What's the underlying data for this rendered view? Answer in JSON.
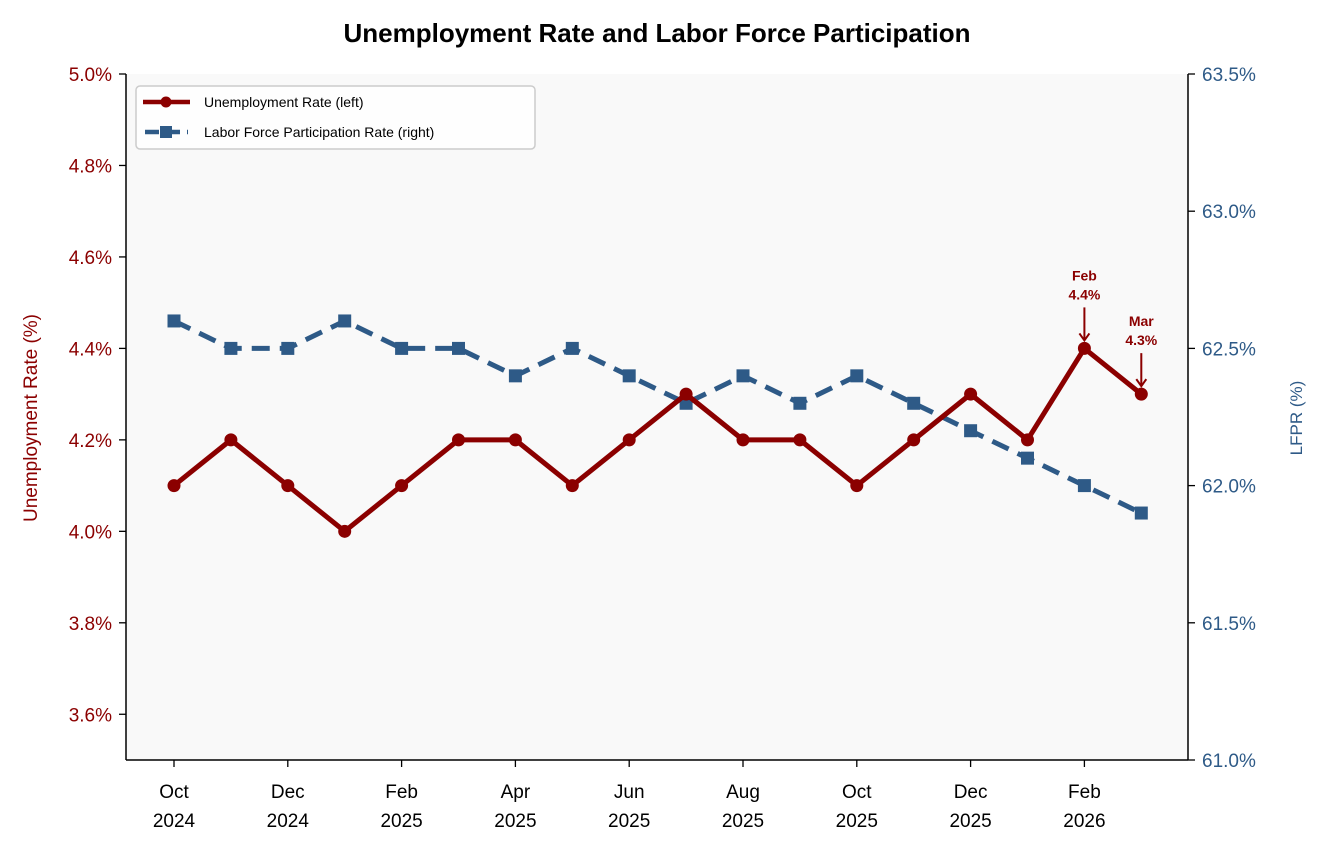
{
  "chart_data": {
    "type": "line",
    "title": "Unemployment Rate and Labor Force Participation",
    "x": [
      "Oct 2024",
      "Nov 2024",
      "Dec 2024",
      "Jan 2025",
      "Feb 2025",
      "Mar 2025",
      "Apr 2025",
      "May 2025",
      "Jun 2025",
      "Jul 2025",
      "Aug 2025",
      "Sep 2025",
      "Oct 2025",
      "Nov 2025",
      "Dec 2025",
      "Jan 2026",
      "Feb 2026",
      "Mar 2026"
    ],
    "x_ticks": [
      {
        "index": 0,
        "line1": "Oct",
        "line2": "2024"
      },
      {
        "index": 2,
        "line1": "Dec",
        "line2": "2024"
      },
      {
        "index": 4,
        "line1": "Feb",
        "line2": "2025"
      },
      {
        "index": 6,
        "line1": "Apr",
        "line2": "2025"
      },
      {
        "index": 8,
        "line1": "Jun",
        "line2": "2025"
      },
      {
        "index": 10,
        "line1": "Aug",
        "line2": "2025"
      },
      {
        "index": 12,
        "line1": "Oct",
        "line2": "2025"
      },
      {
        "index": 14,
        "line1": "Dec",
        "line2": "2025"
      },
      {
        "index": 16,
        "line1": "Feb",
        "line2": "2026"
      }
    ],
    "series": [
      {
        "name": "Unemployment Rate (left)",
        "axis": "left",
        "color": "#8b0000",
        "style": "solid",
        "marker": "circle",
        "values": [
          4.1,
          4.2,
          4.1,
          4.0,
          4.1,
          4.2,
          4.2,
          4.1,
          4.2,
          4.3,
          4.2,
          4.2,
          4.1,
          4.2,
          4.3,
          4.2,
          4.4,
          4.3
        ]
      },
      {
        "name": "Labor Force Participation Rate (right)",
        "axis": "right",
        "color": "#2e5a87",
        "style": "dashed",
        "marker": "square",
        "values": [
          62.6,
          62.5,
          62.5,
          62.6,
          62.5,
          62.5,
          62.4,
          62.5,
          62.4,
          62.3,
          62.4,
          62.3,
          62.4,
          62.3,
          62.2,
          62.1,
          62.0,
          61.9
        ]
      }
    ],
    "ylabel_left": "Unemployment Rate (%)",
    "ylabel_right": "LFPR (%)",
    "ylim_left": [
      3.5,
      5.0
    ],
    "ylim_right": [
      61.0,
      63.5
    ],
    "yticks_left": [
      3.6,
      3.8,
      4.0,
      4.2,
      4.4,
      4.6,
      4.8,
      5.0
    ],
    "yticks_left_labels": [
      "3.6%",
      "3.8%",
      "4.0%",
      "4.2%",
      "4.4%",
      "4.6%",
      "4.8%",
      "5.0%"
    ],
    "yticks_right": [
      61.0,
      61.5,
      62.0,
      62.5,
      63.0,
      63.5
    ],
    "yticks_right_labels": [
      "61.0%",
      "61.5%",
      "62.0%",
      "62.5%",
      "63.0%",
      "63.5%"
    ],
    "grid": false,
    "legend": "top-left",
    "annotations": [
      {
        "index": 16,
        "series": 0,
        "line1": "Feb",
        "line2": "4.4%"
      },
      {
        "index": 17,
        "series": 0,
        "line1": "Mar",
        "line2": "4.3%"
      }
    ],
    "colors": {
      "left_axis": "#8b0000",
      "right_axis": "#2e5a87",
      "plot_background": "#f9f9f9"
    }
  }
}
